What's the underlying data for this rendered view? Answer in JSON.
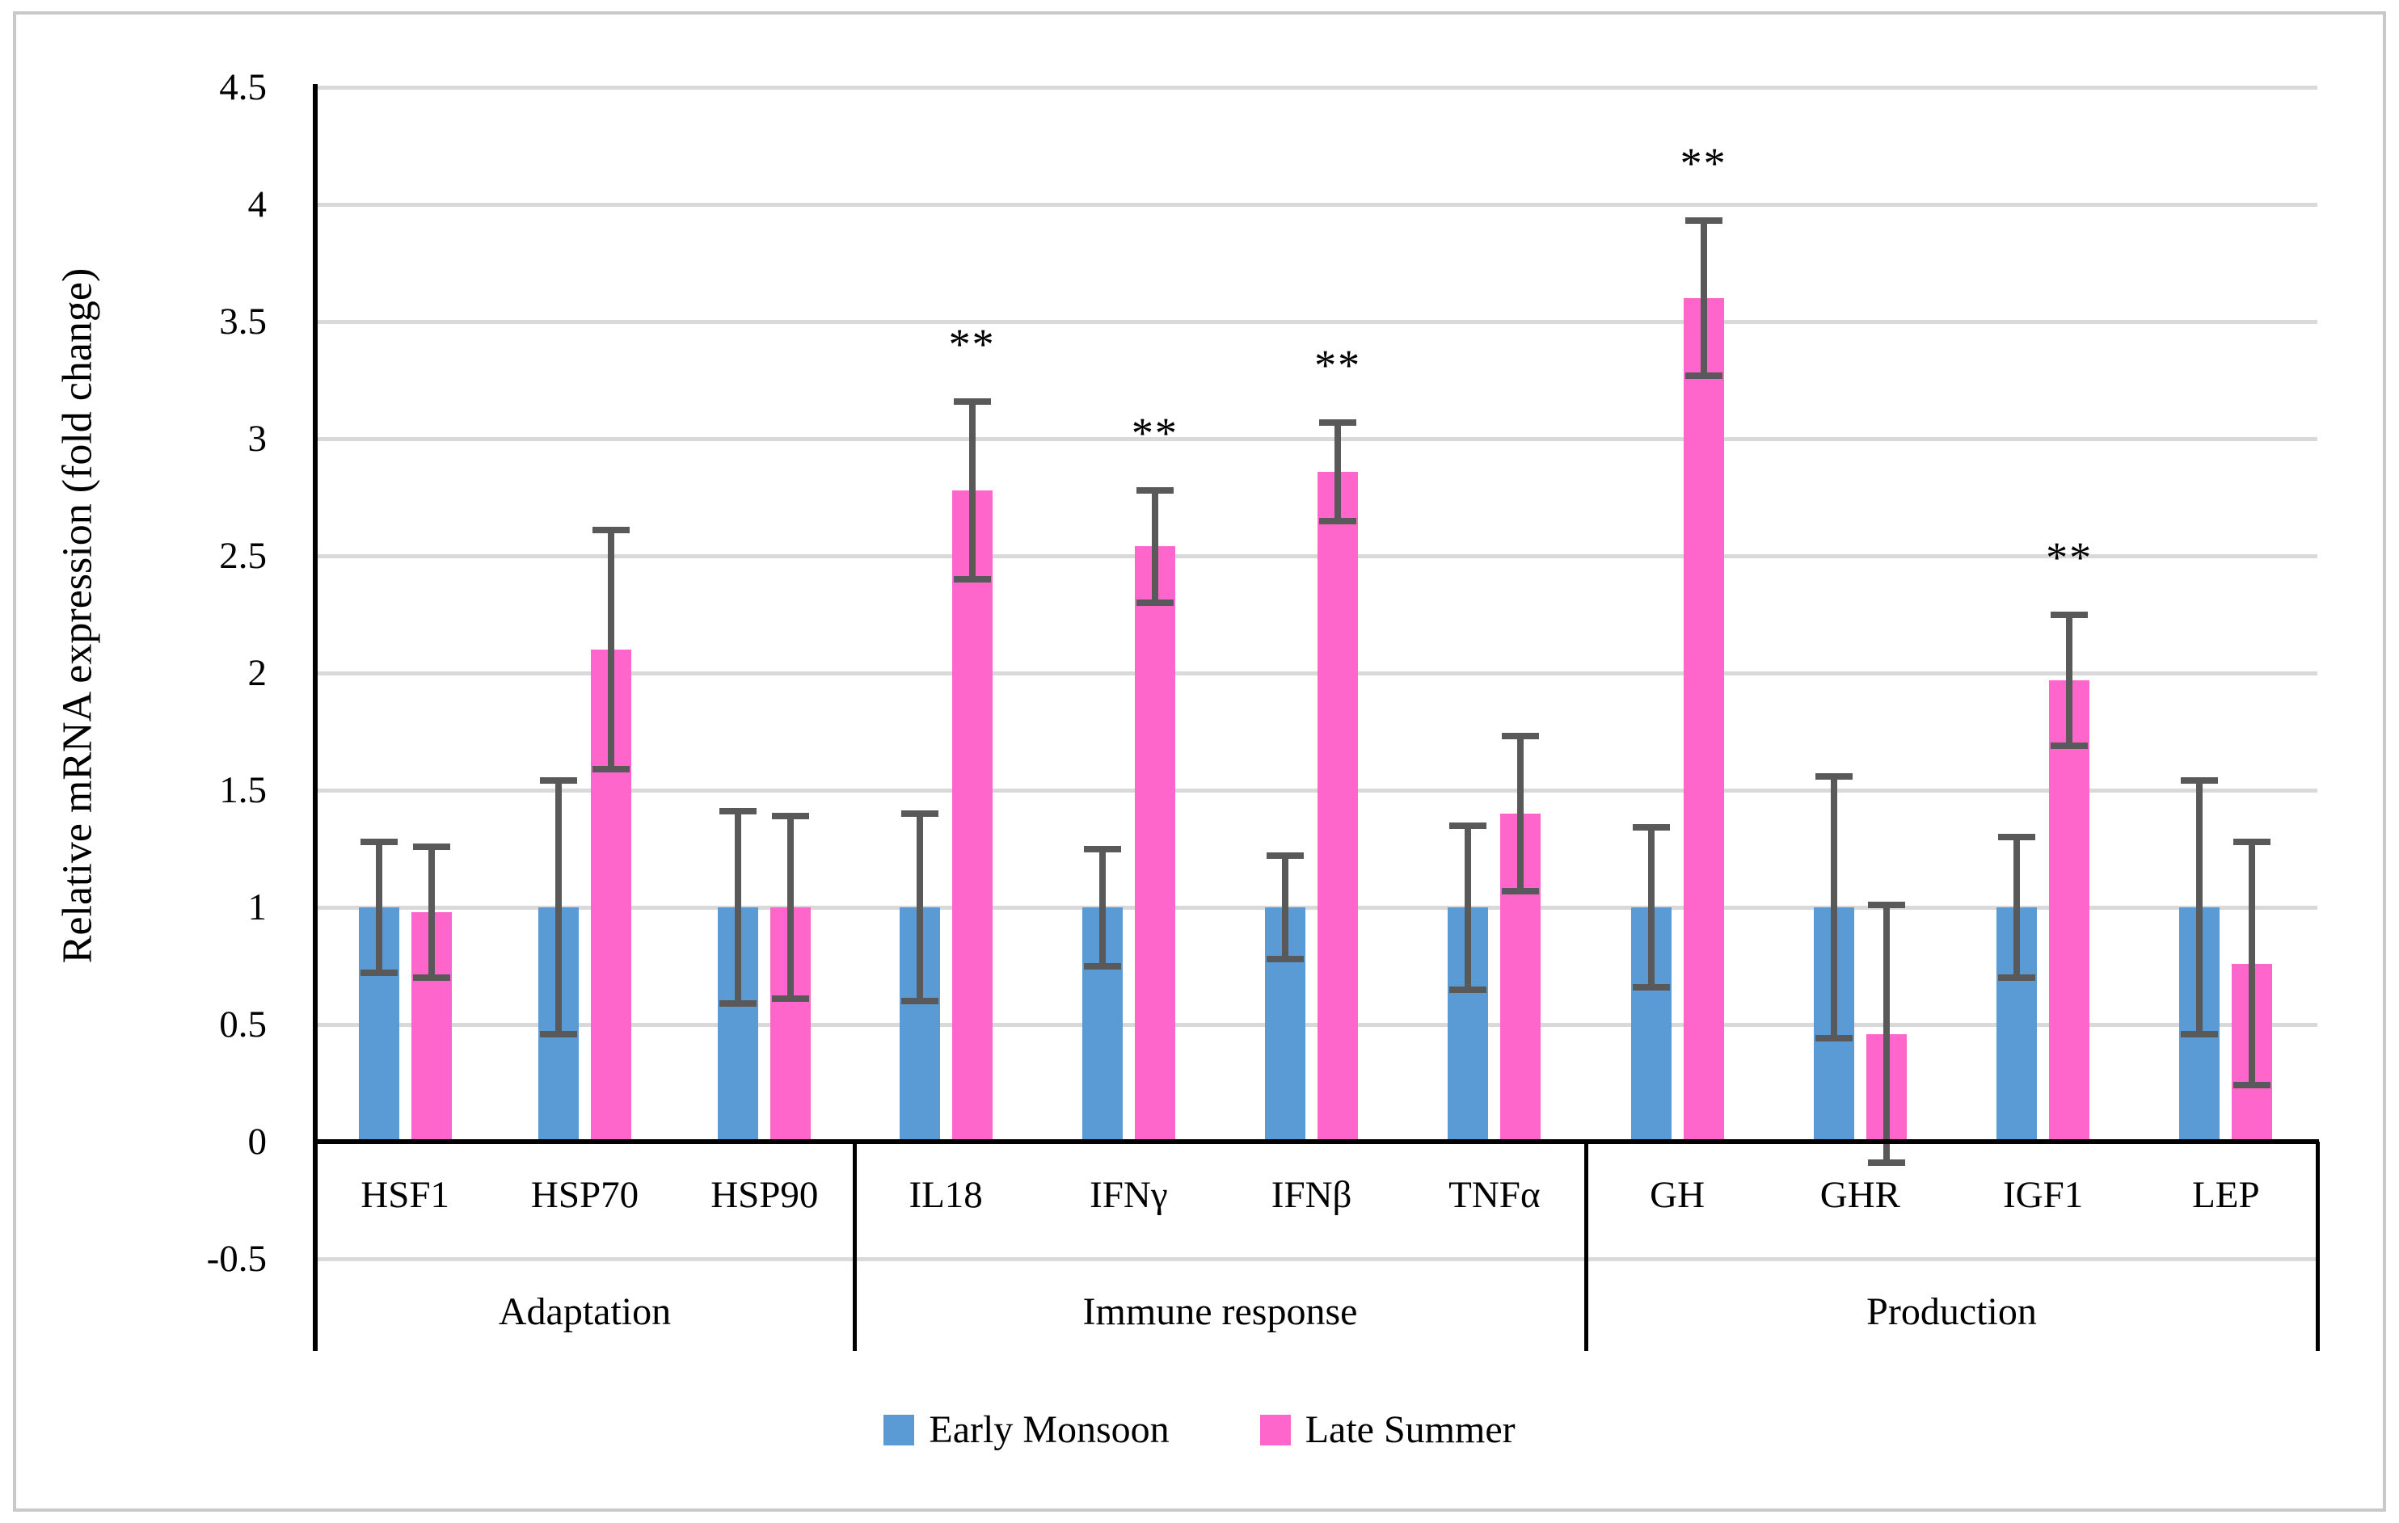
{
  "figure": {
    "y_axis": {
      "title": "Relative mRNA expression (fold change)",
      "min": -0.5,
      "max": 4.5,
      "step": 0.5,
      "tick_labels": [
        "4.5",
        "4",
        "3.5",
        "3",
        "2.5",
        "2",
        "1.5",
        "1",
        "0.5",
        "0",
        "-0.5"
      ]
    },
    "significance_marker": "**",
    "legend": {
      "items": [
        {
          "label": "Early Monsoon",
          "color": "#5B9BD5"
        },
        {
          "label": "Late Summer",
          "color": "#FF66CC"
        }
      ]
    }
  },
  "chart_data": {
    "type": "bar",
    "title": "",
    "xlabel": "",
    "ylabel": "Relative mRNA expression (fold change)",
    "ylim": [
      -0.5,
      4.5
    ],
    "ytick_step": 0.5,
    "grid": true,
    "legend_position": "bottom",
    "error_bar_color": "#595959",
    "gridline_color": "#d9d9d9",
    "categories": [
      "HSF1",
      "HSP70",
      "HSP90",
      "IL18",
      "IFNγ",
      "IFNβ",
      "TNFα",
      "GH",
      "GHR",
      "IGF1",
      "LEP"
    ],
    "category_groups": [
      {
        "label": "Adaptation",
        "genes": [
          "HSF1",
          "HSP70",
          "HSP90"
        ]
      },
      {
        "label": "Immune response",
        "genes": [
          "IL18",
          "IFNγ",
          "IFNβ",
          "TNFα"
        ]
      },
      {
        "label": "Production",
        "genes": [
          "GH",
          "GHR",
          "IGF1",
          "LEP"
        ]
      }
    ],
    "series": [
      {
        "name": "Early Monsoon",
        "color": "#5B9BD5",
        "values": [
          1.0,
          1.0,
          1.0,
          1.0,
          1.0,
          1.0,
          1.0,
          1.0,
          1.0,
          1.0,
          1.0
        ],
        "errors": [
          0.28,
          0.54,
          0.41,
          0.4,
          0.25,
          0.22,
          0.35,
          0.34,
          0.56,
          0.3,
          0.54
        ],
        "significant": [
          false,
          false,
          false,
          false,
          false,
          false,
          false,
          false,
          false,
          false,
          false
        ]
      },
      {
        "name": "Late Summer",
        "color": "#FF66CC",
        "values": [
          0.98,
          2.1,
          1.0,
          2.78,
          2.54,
          2.86,
          1.4,
          3.6,
          0.46,
          1.97,
          0.76
        ],
        "errors": [
          0.28,
          0.51,
          0.39,
          0.38,
          0.24,
          0.21,
          0.33,
          0.33,
          0.55,
          0.28,
          0.52
        ],
        "significant": [
          false,
          false,
          false,
          true,
          true,
          true,
          false,
          true,
          false,
          true,
          false
        ]
      }
    ]
  }
}
